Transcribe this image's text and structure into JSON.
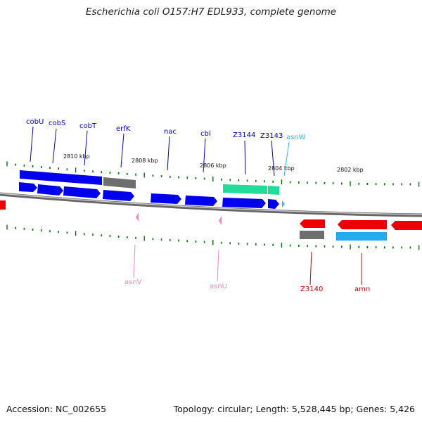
{
  "title": "Escherichia coli O157:H7 EDL933, complete genome",
  "footer": {
    "accession": "Accession: NC_002655",
    "summary": "Topology: circular; Length: 5,528,445 bp; Genes: 5,426"
  },
  "scale_labels": [
    "2810 kbp",
    "2808 kbp",
    "2806 kbp",
    "2804 kbp",
    "2802 kbp"
  ],
  "gene_labels": {
    "reverse_strand": [
      "cobU",
      "cobS",
      "cobT",
      "erfK",
      "nac",
      "cbl",
      "Z3144",
      "Z3143",
      "asnW"
    ],
    "forward_strand": [
      "asnV",
      "asnU",
      "Z3140",
      "amn"
    ]
  },
  "colors": {
    "reverse_gene": "#0000ee",
    "forward_gene": "#ee0000",
    "pseudo_or_other": "#707070",
    "rna_feature": "#22dd99",
    "trna_reverse": "#33bbee",
    "trna_forward": "#ee88bb",
    "amn_feature": "#22aaee",
    "tick": "#007700",
    "backbone": "#888888"
  }
}
